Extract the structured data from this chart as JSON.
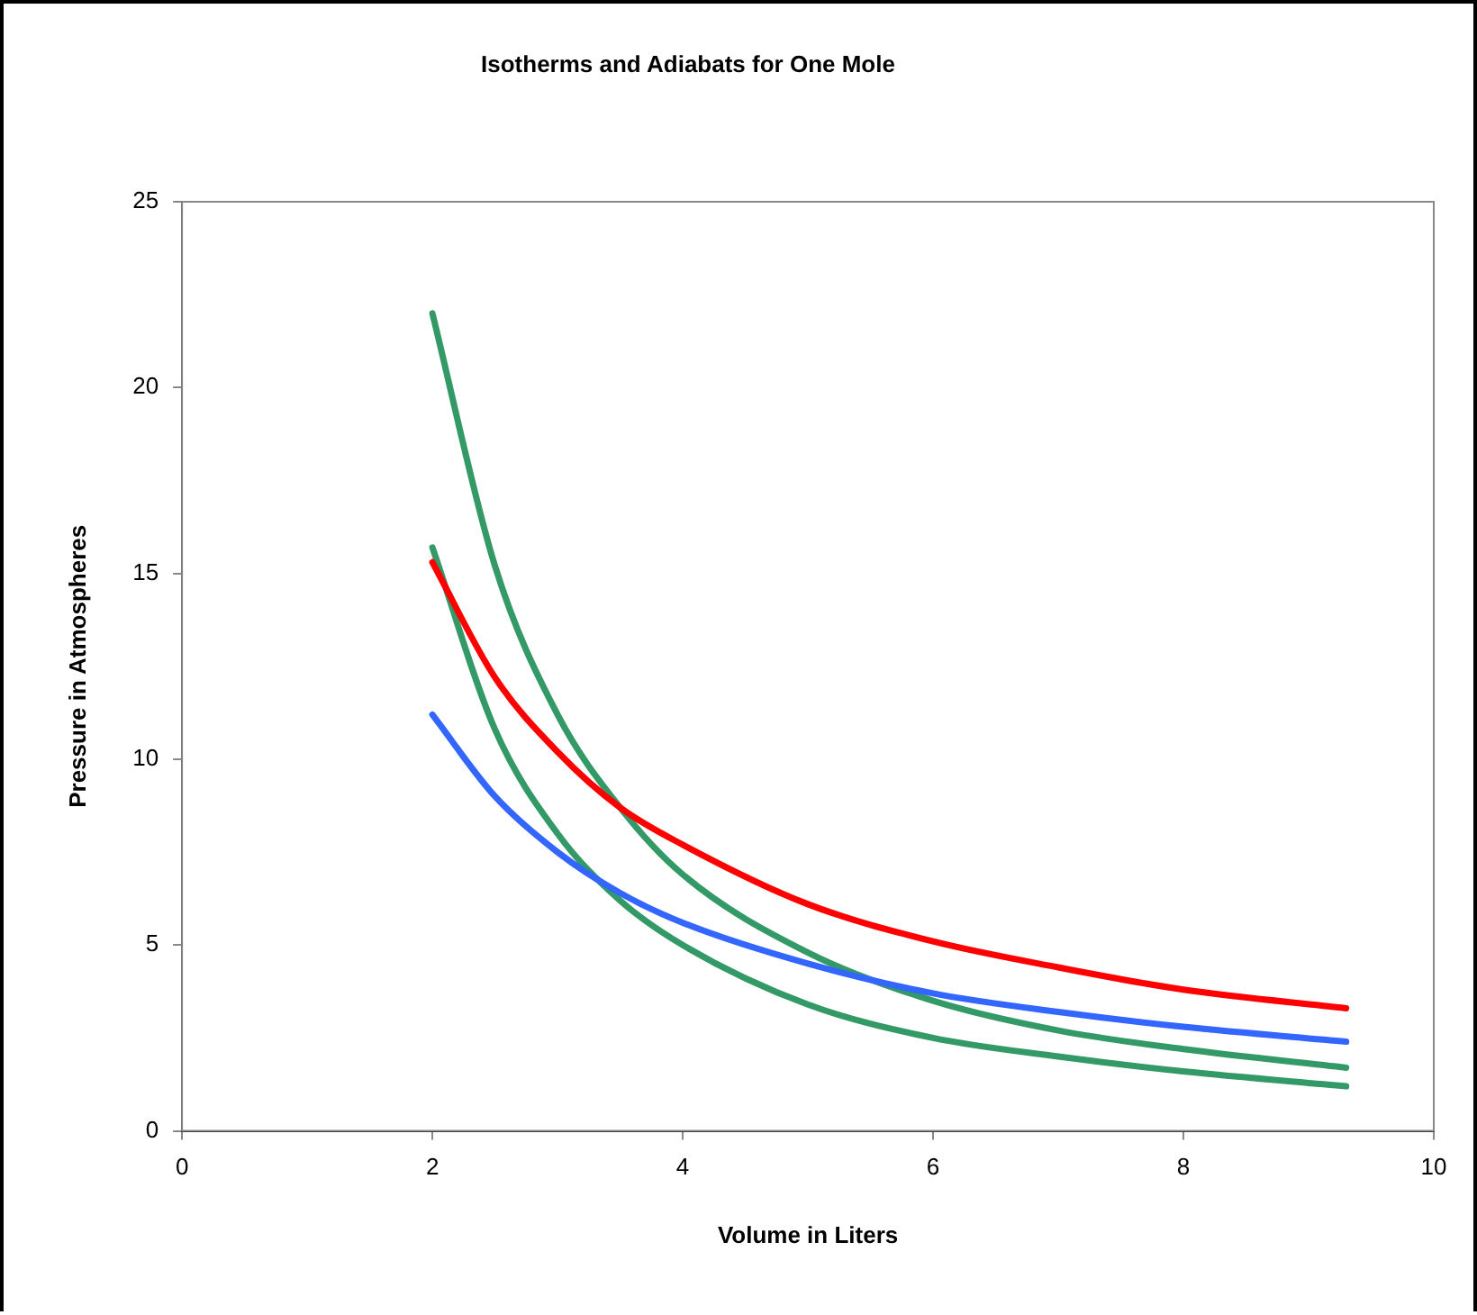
{
  "chart_data": {
    "type": "line",
    "title": "Isotherms and Adiabats for One Mole",
    "xlabel": "Volume in Liters",
    "ylabel": "Pressure in Atmospheres",
    "x": [
      2,
      2.5,
      3,
      3.5,
      4,
      5,
      6,
      7,
      8,
      9.3
    ],
    "series": [
      {
        "color": "#3366ff",
        "values": [
          11.2,
          9.0,
          7.5,
          6.4,
          5.6,
          4.5,
          3.7,
          3.2,
          2.8,
          2.4
        ]
      },
      {
        "color": "#ff0000",
        "values": [
          15.3,
          12.2,
          10.2,
          8.7,
          7.7,
          6.1,
          5.1,
          4.4,
          3.8,
          3.3
        ]
      },
      {
        "color": "#339966",
        "values": [
          22.0,
          15.2,
          11.2,
          8.7,
          6.9,
          4.8,
          3.5,
          2.7,
          2.2,
          1.7
        ]
      },
      {
        "color": "#339966",
        "values": [
          15.7,
          10.8,
          8.0,
          6.2,
          5.0,
          3.4,
          2.5,
          2.0,
          1.6,
          1.2
        ]
      }
    ],
    "xlim": [
      0,
      10
    ],
    "xticks": [
      0,
      2,
      4,
      6,
      8,
      10
    ],
    "ylim": [
      0,
      25
    ],
    "yticks": [
      0,
      5,
      10,
      15,
      20,
      25
    ],
    "grid": false,
    "legend": false,
    "marker": "none",
    "line_style": "solid"
  }
}
